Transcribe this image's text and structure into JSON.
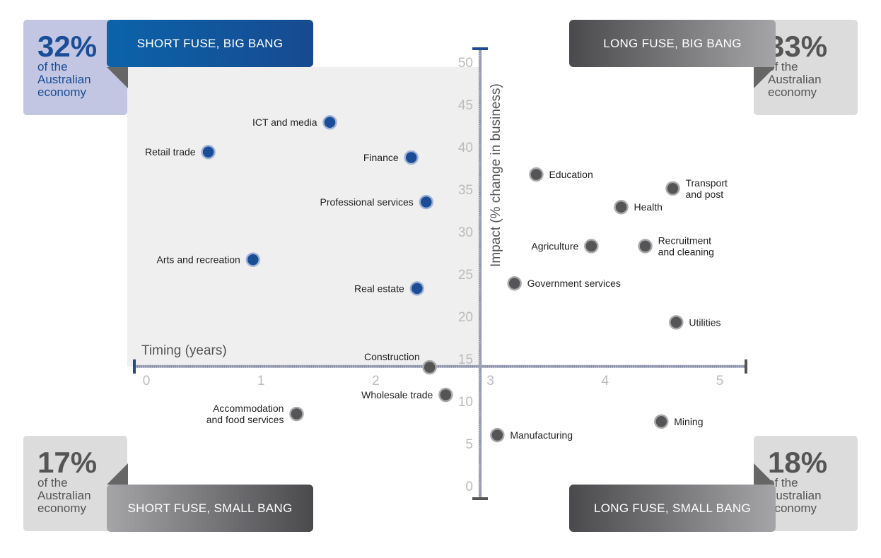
{
  "quadrants": [
    {
      "title": "SHORT FUSE, BIG BANG",
      "percent": "32%",
      "sub": "of the Australian economy"
    },
    {
      "title": "LONG FUSE, BIG BANG",
      "percent": "33%",
      "sub": "of the Australian economy"
    },
    {
      "title": "SHORT FUSE, SMALL BANG",
      "percent": "17%",
      "sub": "of the Australian economy"
    },
    {
      "title": "LONG FUSE, SMALL BANG",
      "percent": "18%",
      "sub": "of the Australian economy"
    }
  ],
  "colors": {
    "short_big": "#1a4d96",
    "other": "#555558",
    "panel": "#efefef"
  },
  "chart_data": {
    "type": "scatter",
    "xlabel": "Timing (years)",
    "ylabel": "Impact (% change in business)",
    "xlim": [
      0,
      5.2
    ],
    "ylim": [
      0,
      51
    ],
    "xticks": [
      0,
      1,
      2,
      3,
      4,
      5
    ],
    "yticks": [
      0,
      5,
      10,
      15,
      20,
      25,
      30,
      35,
      40,
      45,
      50
    ],
    "axis_cross": {
      "x": 2.91,
      "y": 14.1
    },
    "points": [
      {
        "label": "ICT and media",
        "x": 1.6,
        "y": 42.9,
        "group": "short_big",
        "side": "left"
      },
      {
        "label": "Retail trade",
        "x": 0.54,
        "y": 39.4,
        "group": "short_big",
        "side": "left"
      },
      {
        "label": "Finance",
        "x": 2.31,
        "y": 38.75,
        "group": "short_big",
        "side": "left"
      },
      {
        "label": "Professional services",
        "x": 2.44,
        "y": 33.5,
        "group": "short_big",
        "side": "left"
      },
      {
        "label": "Arts and recreation",
        "x": 0.93,
        "y": 26.7,
        "group": "short_big",
        "side": "left"
      },
      {
        "label": "Real estate",
        "x": 2.36,
        "y": 23.3,
        "group": "short_big",
        "side": "left"
      },
      {
        "label": "Construction",
        "x": 2.47,
        "y": 14,
        "group": "short_small",
        "side": "below"
      },
      {
        "label": "Wholesale trade",
        "x": 2.61,
        "y": 10.75,
        "group": "short_small",
        "side": "left"
      },
      {
        "label": "Accommodation\nand food services",
        "x": 1.31,
        "y": 8.5,
        "group": "short_small",
        "side": "left"
      },
      {
        "label": "Manufacturing",
        "x": 3.06,
        "y": 6,
        "group": "long_small",
        "side": "right"
      },
      {
        "label": "Mining",
        "x": 4.49,
        "y": 7.6,
        "group": "long_small",
        "side": "right"
      },
      {
        "label": "Education",
        "x": 3.4,
        "y": 36.75,
        "group": "long_big",
        "side": "right"
      },
      {
        "label": "Transport\nand post",
        "x": 4.59,
        "y": 35.1,
        "group": "long_big",
        "side": "right"
      },
      {
        "label": "Health",
        "x": 4.14,
        "y": 32.9,
        "group": "long_big",
        "side": "right"
      },
      {
        "label": "Agriculture",
        "x": 3.88,
        "y": 28.3,
        "group": "long_big",
        "side": "left"
      },
      {
        "label": "Recruitment\nand cleaning",
        "x": 4.35,
        "y": 28.3,
        "group": "long_big",
        "side": "right"
      },
      {
        "label": "Government services",
        "x": 3.21,
        "y": 23.9,
        "group": "long_big",
        "side": "right"
      },
      {
        "label": "Utilities",
        "x": 4.62,
        "y": 19.3,
        "group": "long_big",
        "side": "right"
      }
    ]
  }
}
